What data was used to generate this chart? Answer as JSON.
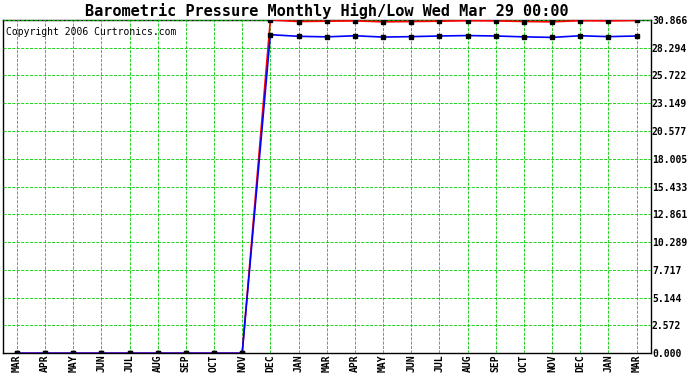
{
  "title": "Barometric Pressure Monthly High/Low Wed Mar 29 00:00",
  "copyright": "Copyright 2006 Curtronics.com",
  "x_labels": [
    "MAR",
    "APR",
    "MAY",
    "JUN",
    "JUL",
    "AUG",
    "SEP",
    "OCT",
    "NOV",
    "DEC",
    "JAN",
    "MAR",
    "APR",
    "MAY",
    "JUN",
    "JUL",
    "AUG",
    "SEP",
    "OCT",
    "NOV",
    "DEC",
    "JAN",
    "MAR"
  ],
  "yticks": [
    0.0,
    2.572,
    5.144,
    7.717,
    10.289,
    12.861,
    15.433,
    18.005,
    20.577,
    23.149,
    25.722,
    28.294,
    30.866
  ],
  "ylim": [
    0.0,
    30.866
  ],
  "high_values": [
    0.0,
    0.0,
    0.0,
    0.0,
    0.0,
    0.0,
    0.0,
    0.0,
    0.0,
    30.866,
    30.72,
    30.75,
    30.78,
    30.69,
    30.72,
    30.75,
    30.8,
    30.78,
    30.72,
    30.69,
    30.8,
    30.78,
    30.82
  ],
  "low_values": [
    0.0,
    0.0,
    0.0,
    0.0,
    0.0,
    0.0,
    0.0,
    0.0,
    0.0,
    29.5,
    29.35,
    29.3,
    29.4,
    29.28,
    29.32,
    29.38,
    29.42,
    29.38,
    29.3,
    29.25,
    29.4,
    29.32,
    29.38
  ],
  "high_color": "#ff0000",
  "low_color": "#0000ff",
  "marker_color": "#000000",
  "bg_color": "#ffffff",
  "grid_color": "#00cc00",
  "title_fontsize": 11,
  "axis_label_fontsize": 7,
  "copyright_fontsize": 7,
  "fig_width": 6.9,
  "fig_height": 3.75,
  "dpi": 100
}
